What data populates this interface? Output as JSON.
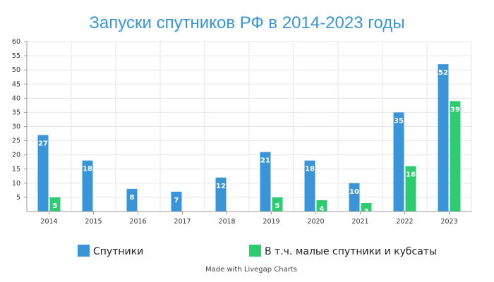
{
  "chart_data": {
    "type": "bar",
    "title": "Запуски спутников РФ в 2014-2023 годы",
    "xlabel": "",
    "ylabel": "",
    "categories": [
      "2014",
      "2015",
      "2016",
      "2017",
      "2018",
      "2019",
      "2020",
      "2021",
      "2022",
      "2023"
    ],
    "series": [
      {
        "name": "Спутники",
        "color": "#3a95d8",
        "values": [
          27,
          18,
          8,
          7,
          12,
          21,
          18,
          10,
          35,
          52
        ],
        "labels": [
          "27",
          "18",
          "8",
          "7",
          "12",
          "21",
          "18",
          "10",
          "35",
          "52"
        ]
      },
      {
        "name": "В т.ч. малые спутники и кубсаты",
        "color": "#2ecc71",
        "values": [
          5,
          0,
          0,
          0,
          0,
          5,
          4,
          3,
          16,
          39
        ],
        "labels": [
          "5",
          "",
          "",
          "",
          "",
          "5",
          "4",
          "3",
          "16",
          "39"
        ]
      }
    ],
    "ylim": [
      0,
      60
    ],
    "yticks": [
      5,
      10,
      15,
      20,
      25,
      30,
      35,
      40,
      45,
      50,
      55,
      60
    ],
    "grid": true,
    "legend_position": "bottom",
    "title_color": "#3a95d8"
  },
  "footer": {
    "credit": "Made with Livegap Charts"
  }
}
